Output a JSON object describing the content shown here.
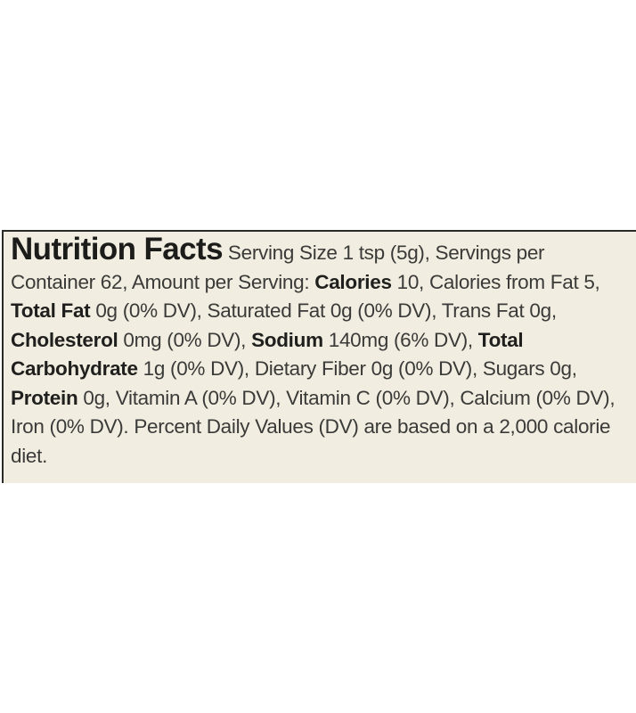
{
  "label": {
    "title": "Nutrition Facts",
    "segments": [
      {
        "text": " Serving Size 1 tsp (5g), Servings per Container 62, Amount per Serving: ",
        "bold": false
      },
      {
        "text": "Calories",
        "bold": true
      },
      {
        "text": " 10, Calories from Fat 5, ",
        "bold": false
      },
      {
        "text": "Total Fat",
        "bold": true
      },
      {
        "text": " 0g (0% DV), Saturated Fat 0g (0% DV), Trans Fat 0g, ",
        "bold": false
      },
      {
        "text": "Cholesterol",
        "bold": true
      },
      {
        "text": " 0mg (0% DV), ",
        "bold": false
      },
      {
        "text": "Sodium",
        "bold": true
      },
      {
        "text": " 140mg (6% DV), ",
        "bold": false
      },
      {
        "text": "Total Carbohydrate",
        "bold": true
      },
      {
        "text": " 1g (0% DV), Dietary Fiber 0g (0% DV), Sugars 0g, ",
        "bold": false
      },
      {
        "text": "Protein",
        "bold": true
      },
      {
        "text": " 0g, Vitamin A (0% DV), Vitamin C (0% DV), Calcium (0% DV), Iron (0% DV). Percent Daily Values (DV) are based on a 2,000 calorie diet.",
        "bold": false
      }
    ]
  }
}
